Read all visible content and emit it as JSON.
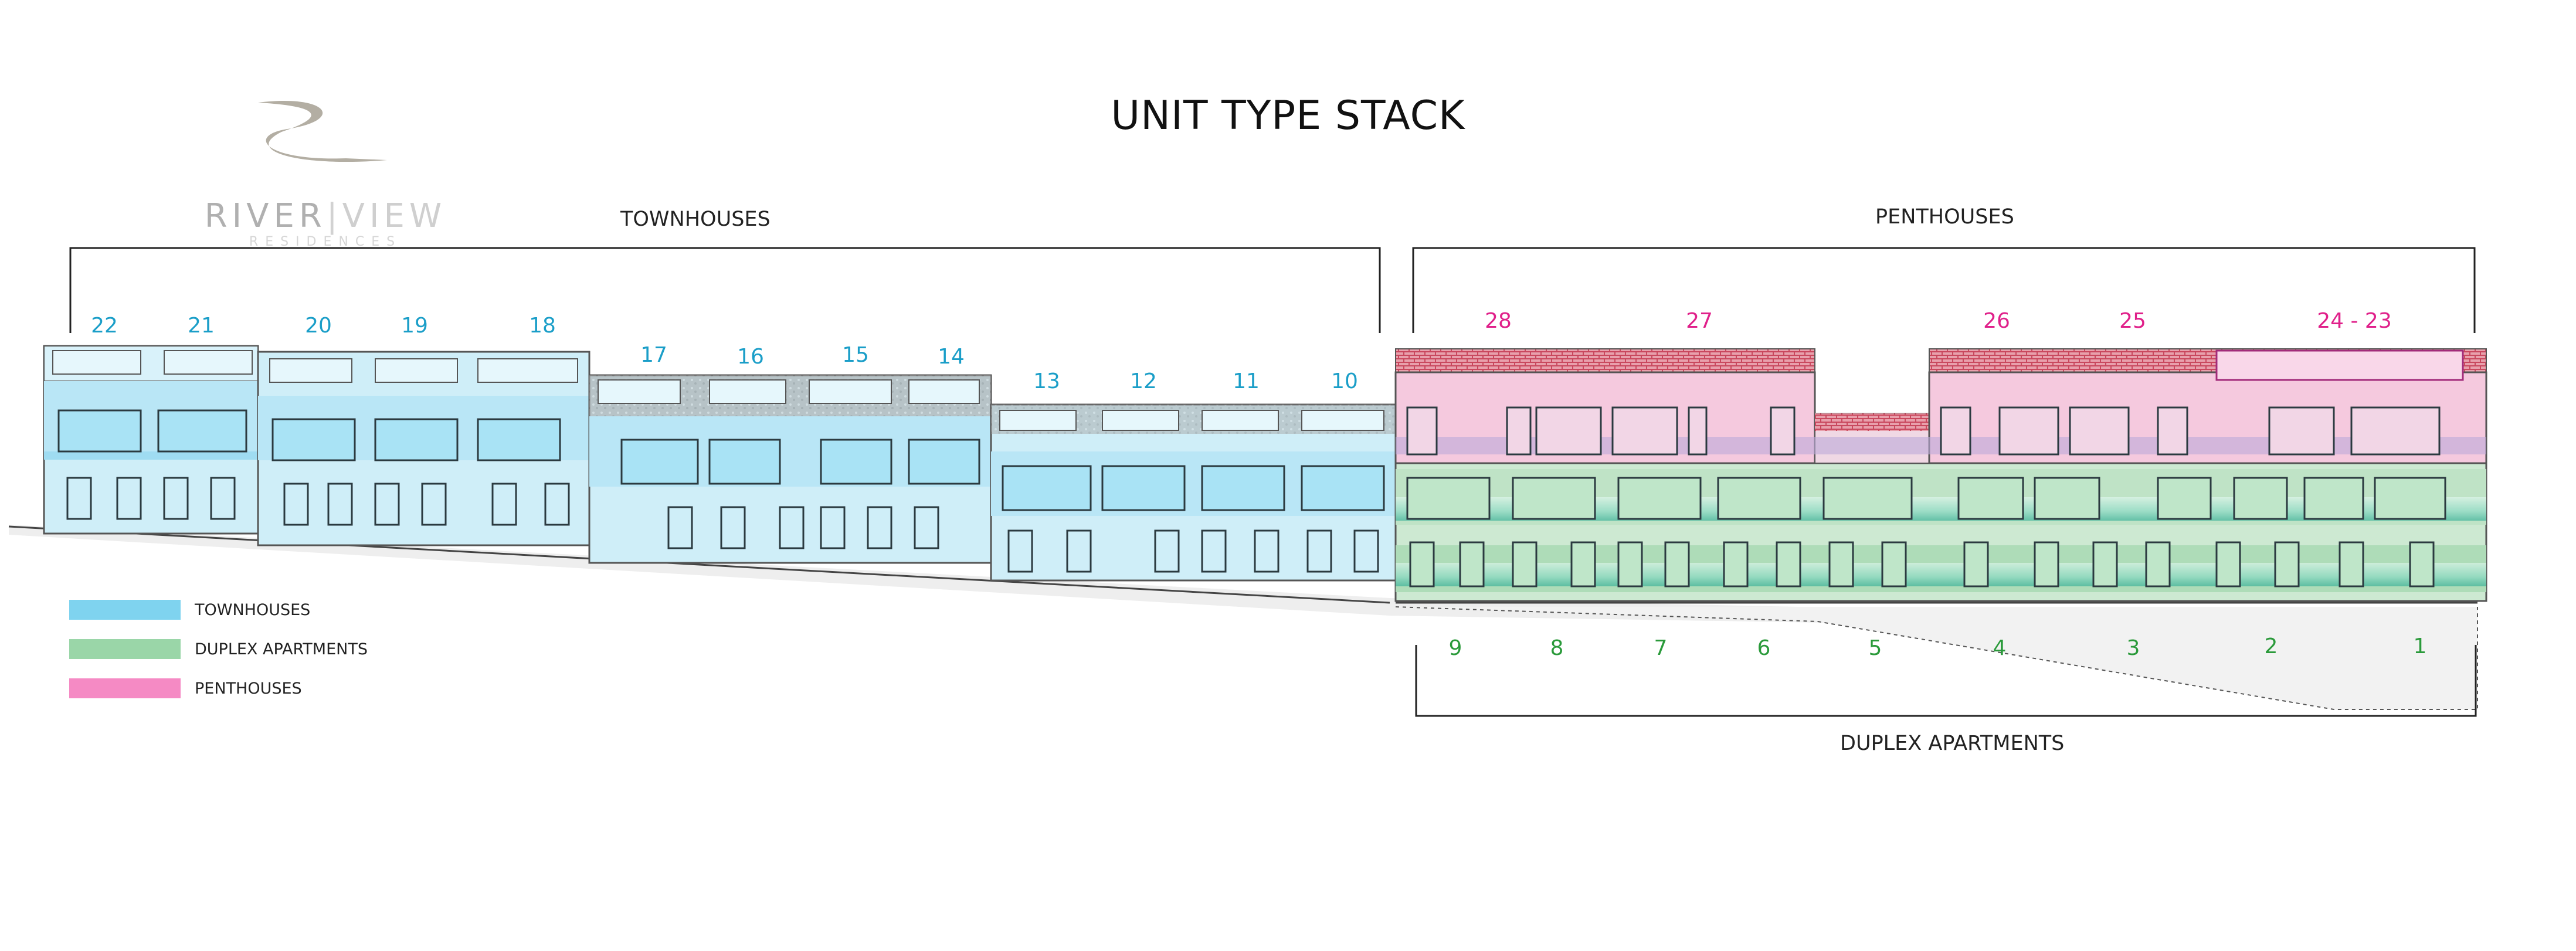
{
  "title": "UNIT TYPE STACK",
  "logo": {
    "word_a": "RIVER",
    "word_b": "VIEW",
    "subtitle": "RESIDENCES"
  },
  "sections": {
    "townhouses": "TOWNHOUSES",
    "penthouses": "PENTHOUSES",
    "duplex": "DUPLEX APARTMENTS"
  },
  "colors": {
    "townhouse": "#7fd3ef",
    "duplex": "#9ad6a8",
    "penthouse": "#f58ac4",
    "townhouse_text": "#1a9ec8",
    "duplex_text": "#2a9a3a",
    "penthouse_text": "#e0208a"
  },
  "legend": [
    {
      "label": "TOWNHOUSES",
      "color": "#7fd3ef"
    },
    {
      "label": "DUPLEX APARTMENTS",
      "color": "#9ad6a8"
    },
    {
      "label": "PENTHOUSES",
      "color": "#f58ac4"
    }
  ],
  "townhouse_units": [
    "22",
    "21",
    "20",
    "19",
    "18",
    "17",
    "16",
    "15",
    "14",
    "13",
    "12",
    "11",
    "10"
  ],
  "penthouse_units": [
    "28",
    "27",
    "26",
    "25",
    "24 - 23"
  ],
  "duplex_units": [
    "9",
    "8",
    "7",
    "6",
    "5",
    "4",
    "3",
    "2",
    "1"
  ]
}
